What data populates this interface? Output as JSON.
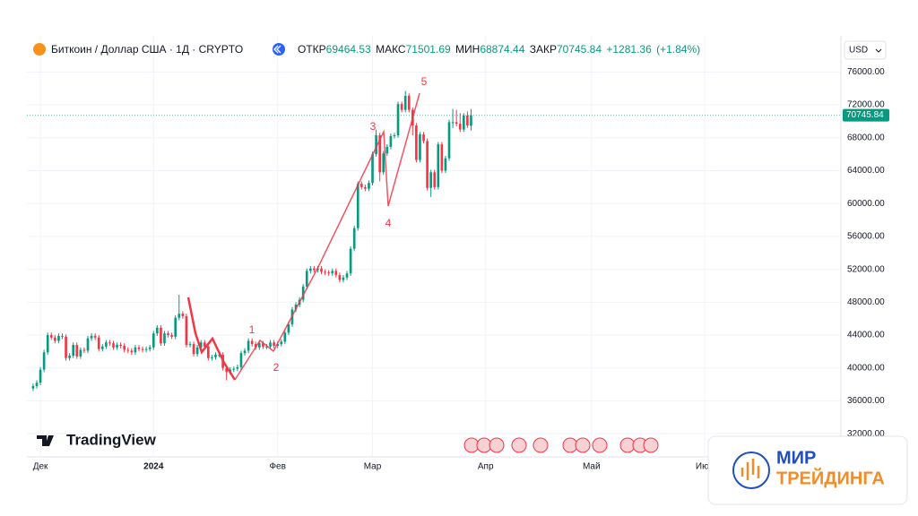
{
  "chart_data": {
    "type": "candlestick",
    "title": "Биткоин / Доллар США · 1Д · CRYPTO",
    "ohlc_labels": {
      "open": "ОТКР",
      "high": "МАКС",
      "low": "МИН",
      "close": "ЗАКР"
    },
    "change": {
      "value": 1281.36,
      "label": "+1281.36"
    },
    "change_pct": {
      "value": 1.84,
      "label": "(+1.84%)"
    },
    "currency": "USD",
    "logo": "TradingView",
    "watermark": {
      "line1": "МИР",
      "line2": "ТРЕЙДИНГА"
    },
    "annotations": [
      "1",
      "2",
      "3",
      "4",
      "5"
    ],
    "up_color": "#089981",
    "down_color": "#f23645",
    "grid": true,
    "xlim": [
      -1.7,
      220.6
    ],
    "xticks": [
      {
        "value": 2,
        "label": "Дек"
      },
      {
        "value": 33,
        "label": "2024"
      },
      {
        "value": 67,
        "label": "Фев"
      },
      {
        "value": 93,
        "label": "Мар"
      },
      {
        "value": 124,
        "label": "Апр"
      },
      {
        "value": 153,
        "label": "Май"
      },
      {
        "value": 184,
        "label": "Июн"
      }
    ],
    "ylim": [
      29400,
      80400
    ],
    "yticks": [
      {
        "value": 32000,
        "label": "32000.00"
      },
      {
        "value": 36000,
        "label": "36000.00"
      },
      {
        "value": 40000,
        "label": "40000.00"
      },
      {
        "value": 44000,
        "label": "44000.00"
      },
      {
        "value": 48000,
        "label": "48000.00"
      },
      {
        "value": 52000,
        "label": "52000.00"
      },
      {
        "value": 56000,
        "label": "56000.00"
      },
      {
        "value": 60000,
        "label": "60000.00"
      },
      {
        "value": 64000,
        "label": "64000.00"
      },
      {
        "value": 68000,
        "label": "68000.00"
      },
      {
        "value": 72000,
        "label": "72000.00"
      },
      {
        "value": 76000,
        "label": "76000.00"
      }
    ],
    "open": [
      37500,
      37800,
      38200,
      39800,
      41900,
      44000,
      43700,
      43300,
      43900,
      43800,
      41200,
      41500,
      42800,
      41400,
      42200,
      42100,
      43600,
      43900,
      43700,
      42300,
      42600,
      43100,
      43000,
      42500,
      42800,
      42700,
      42200,
      42100,
      41900,
      42500,
      42300,
      42200,
      42300,
      42500,
      44200,
      44900,
      43000,
      44200,
      44000,
      43800,
      46100,
      46600,
      46300,
      42800,
      42900,
      41700,
      42500,
      43100,
      42600,
      41200,
      41300,
      41600,
      41600,
      40000,
      39500,
      39800,
      39900,
      40100,
      41800,
      42100,
      43300,
      42900,
      42500,
      43000,
      42600,
      42600,
      43100,
      42700,
      42900,
      43200,
      44300,
      45300,
      47100,
      47700,
      48300,
      49900,
      51800,
      52100,
      51900,
      52100,
      51700,
      51600,
      51500,
      51800,
      51300,
      50700,
      51000,
      51500,
      54500,
      57000,
      62400,
      62000,
      61800,
      62500,
      66000,
      68300,
      63800,
      66100,
      66900,
      68200,
      68300,
      72100,
      71400,
      73100,
      71400,
      69500,
      65300,
      68400,
      67600,
      61900,
      63800,
      62000,
      67200,
      64000,
      65500,
      69900,
      69900,
      69700,
      69000,
      70700,
      69464.53
    ],
    "high": [
      38100,
      38500,
      40100,
      42200,
      44300,
      44300,
      44000,
      44200,
      44200,
      44100,
      41800,
      43100,
      43100,
      42500,
      42500,
      43900,
      44200,
      44200,
      44000,
      42900,
      43400,
      43400,
      43300,
      43100,
      43100,
      43000,
      42500,
      42400,
      42800,
      42800,
      42600,
      42600,
      42800,
      44500,
      45200,
      45200,
      44500,
      44500,
      44300,
      46400,
      48900,
      46900,
      46600,
      43200,
      43200,
      42800,
      43400,
      43400,
      42900,
      41600,
      41900,
      41900,
      41900,
      40300,
      40100,
      40200,
      40400,
      42100,
      42400,
      43600,
      43600,
      43200,
      43300,
      43300,
      42900,
      43400,
      43400,
      43200,
      43500,
      44600,
      45600,
      47400,
      48000,
      48600,
      50200,
      52100,
      52400,
      52400,
      52400,
      52400,
      52000,
      51900,
      52100,
      52100,
      51600,
      51300,
      51800,
      54800,
      57300,
      62700,
      62700,
      62300,
      62800,
      66300,
      69000,
      68600,
      66400,
      67200,
      68500,
      68600,
      72400,
      72400,
      73700,
      73400,
      71700,
      69800,
      68700,
      68700,
      67900,
      64100,
      64100,
      67500,
      67500,
      65800,
      70200,
      71500,
      71400,
      71000,
      71000,
      71200,
      71501.69
    ],
    "low": [
      37200,
      37500,
      37900,
      39500,
      41600,
      43400,
      43000,
      43000,
      43500,
      40900,
      40900,
      41200,
      41100,
      41100,
      41800,
      41800,
      43300,
      43400,
      42000,
      42000,
      42300,
      42700,
      42200,
      42200,
      42400,
      41900,
      41800,
      41600,
      41600,
      42000,
      41900,
      41900,
      42000,
      42200,
      43900,
      42700,
      42700,
      43700,
      43500,
      43500,
      45800,
      46000,
      42500,
      42500,
      41400,
      41400,
      42200,
      42300,
      40900,
      40900,
      41000,
      41300,
      39700,
      38500,
      39200,
      39500,
      39600,
      39800,
      41500,
      41800,
      42600,
      42200,
      42200,
      42300,
      42300,
      42300,
      42400,
      42400,
      42600,
      42900,
      44000,
      45000,
      46800,
      47400,
      48000,
      49600,
      51500,
      51600,
      51600,
      51400,
      51300,
      51200,
      51200,
      51000,
      50400,
      50400,
      50700,
      51200,
      54200,
      56700,
      61700,
      61500,
      61500,
      62200,
      65700,
      62700,
      63500,
      65800,
      66600,
      67900,
      68000,
      71100,
      71100,
      71100,
      68300,
      65000,
      65000,
      67300,
      61600,
      60800,
      61700,
      61700,
      63700,
      63700,
      65200,
      69200,
      69400,
      68700,
      68700,
      69200,
      68874.44
    ],
    "close": [
      37800,
      38200,
      39800,
      41900,
      44000,
      43700,
      43300,
      43900,
      43800,
      41200,
      41500,
      42800,
      41400,
      42200,
      42100,
      43600,
      43900,
      43700,
      42300,
      42600,
      43100,
      43000,
      42500,
      42800,
      42700,
      42200,
      42100,
      41900,
      42500,
      42300,
      42200,
      42300,
      42500,
      44200,
      44900,
      43000,
      44200,
      44000,
      43800,
      46100,
      46600,
      46300,
      42800,
      42900,
      41700,
      42500,
      43100,
      42600,
      41200,
      41300,
      41600,
      41600,
      40000,
      39500,
      39800,
      39900,
      40100,
      41800,
      42100,
      43300,
      42900,
      42500,
      43000,
      42600,
      42600,
      43100,
      42700,
      42900,
      43200,
      44300,
      45300,
      47100,
      47700,
      48300,
      49900,
      51800,
      52100,
      51900,
      52100,
      51700,
      51600,
      51500,
      51800,
      51300,
      50700,
      51000,
      51500,
      54500,
      57000,
      62400,
      62000,
      61800,
      62500,
      66000,
      68300,
      63800,
      66100,
      66900,
      68200,
      68300,
      72100,
      71400,
      73100,
      71400,
      69500,
      65300,
      68400,
      67600,
      61900,
      63800,
      62000,
      67200,
      64000,
      65500,
      69900,
      69900,
      69700,
      69000,
      70700,
      69500,
      70745.84
    ]
  }
}
